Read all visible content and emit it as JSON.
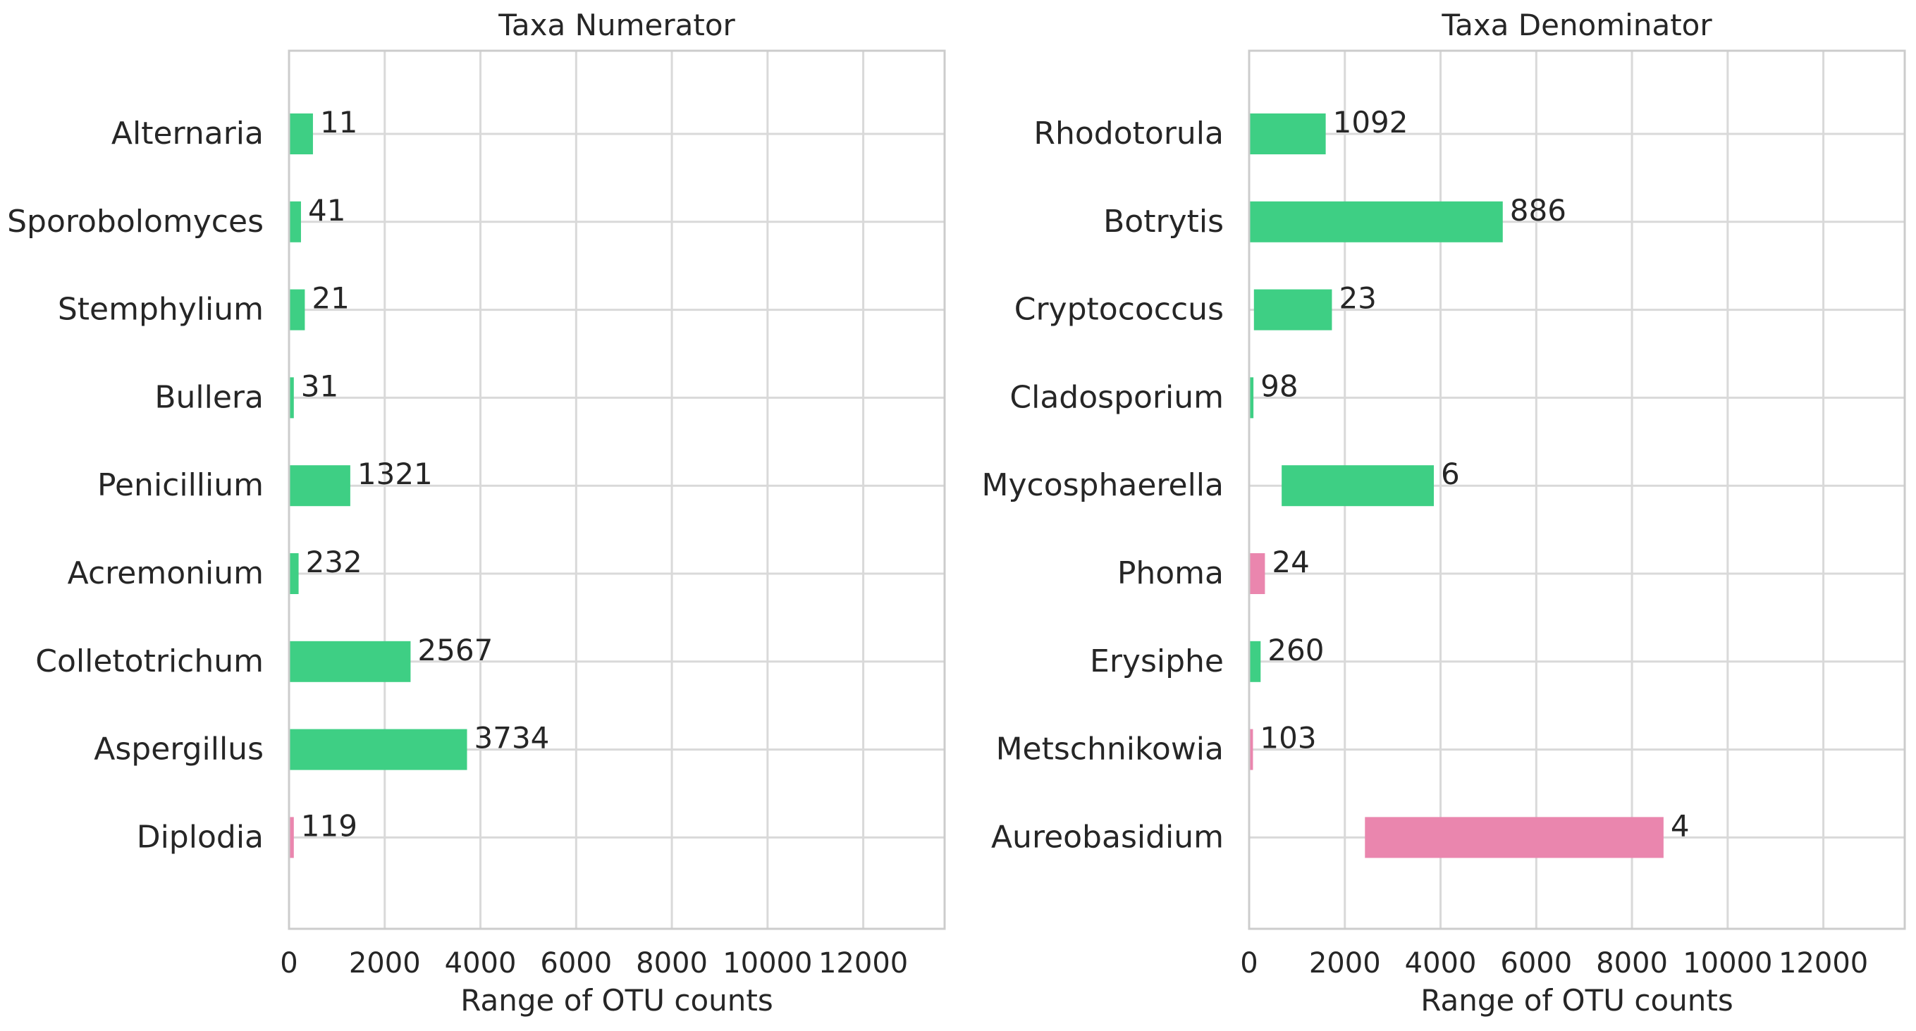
{
  "colors": {
    "green": "#3ecf84",
    "pink": "#ea86ae",
    "grid": "#d9d9d9",
    "text": "#262626"
  },
  "chart_data": [
    {
      "type": "bar",
      "orientation": "horizontal",
      "title": "Taxa Numerator",
      "xlabel": "Range of OTU counts",
      "ylabel": "",
      "xlim": [
        0,
        13700
      ],
      "xticks": [
        0,
        2000,
        4000,
        6000,
        8000,
        10000,
        12000
      ],
      "grid": true,
      "bars": [
        {
          "label": "Alternaria",
          "start": 0,
          "end": 500,
          "annotation": "11",
          "color": "green"
        },
        {
          "label": "Sporobolomyces",
          "start": 0,
          "end": 250,
          "annotation": "41",
          "color": "green"
        },
        {
          "label": "Stemphylium",
          "start": 0,
          "end": 330,
          "annotation": "21",
          "color": "green"
        },
        {
          "label": "Bullera",
          "start": 0,
          "end": 100,
          "annotation": "31",
          "color": "green"
        },
        {
          "label": "Penicillium",
          "start": 0,
          "end": 1280,
          "annotation": "1321",
          "color": "green"
        },
        {
          "label": "Acremonium",
          "start": 0,
          "end": 200,
          "annotation": "232",
          "color": "green"
        },
        {
          "label": "Colletotrichum",
          "start": 0,
          "end": 2540,
          "annotation": "2567",
          "color": "green"
        },
        {
          "label": "Aspergillus",
          "start": 0,
          "end": 3720,
          "annotation": "3734",
          "color": "green"
        },
        {
          "label": "Diplodia",
          "start": 0,
          "end": 100,
          "annotation": "119",
          "color": "pink"
        }
      ]
    },
    {
      "type": "bar",
      "orientation": "horizontal",
      "title": "Taxa Denominator",
      "xlabel": "Range of OTU counts",
      "ylabel": "",
      "xlim": [
        0,
        13700
      ],
      "xticks": [
        0,
        2000,
        4000,
        6000,
        8000,
        10000,
        12000
      ],
      "grid": true,
      "bars": [
        {
          "label": "Rhodotorula",
          "start": 0,
          "end": 1600,
          "annotation": "1092",
          "color": "green"
        },
        {
          "label": "Botrytis",
          "start": 0,
          "end": 5300,
          "annotation": "886",
          "color": "green"
        },
        {
          "label": "Cryptococcus",
          "start": 100,
          "end": 1730,
          "annotation": "23",
          "color": "green"
        },
        {
          "label": "Cladosporium",
          "start": 0,
          "end": 90,
          "annotation": "98",
          "color": "green"
        },
        {
          "label": "Mycosphaerella",
          "start": 680,
          "end": 3860,
          "annotation": "6",
          "color": "green"
        },
        {
          "label": "Phoma",
          "start": 0,
          "end": 330,
          "annotation": "24",
          "color": "pink"
        },
        {
          "label": "Erysiphe",
          "start": 0,
          "end": 240,
          "annotation": "260",
          "color": "green"
        },
        {
          "label": "Metschnikowia",
          "start": 0,
          "end": 80,
          "annotation": "103",
          "color": "pink"
        },
        {
          "label": "Aureobasidium",
          "start": 2420,
          "end": 8660,
          "annotation": "4",
          "color": "pink"
        }
      ]
    }
  ]
}
